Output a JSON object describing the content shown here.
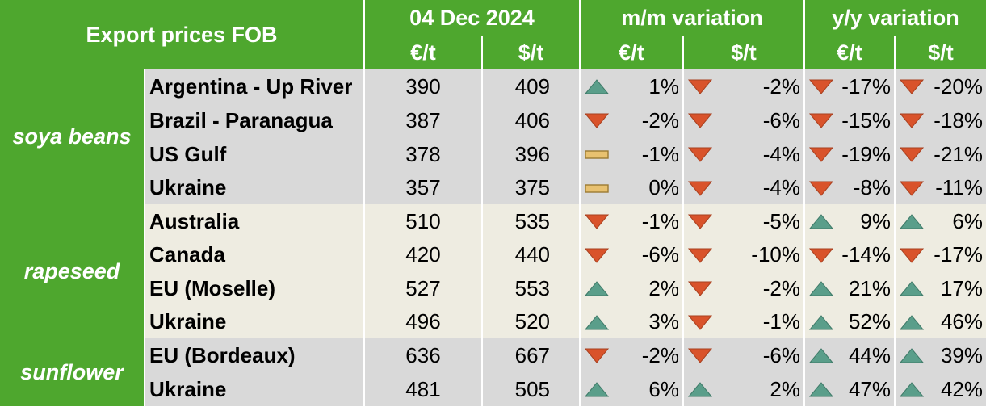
{
  "header": {
    "title": "Export prices FOB",
    "date": "04 Dec 2024",
    "mm_label": "m/m variation",
    "yy_label": "y/y variation",
    "unit_eur": "€/t",
    "unit_usd": "$/t"
  },
  "groups": [
    {
      "name": "soya beans",
      "color": "#4ea72e"
    },
    {
      "name": "rapeseed",
      "color": "#4ea72e"
    },
    {
      "name": "sunflower",
      "color": "#4ea72e"
    }
  ],
  "colors": {
    "header_green": "#4ea72e",
    "row_grey": "#d9d9d9",
    "row_cream": "#eeece1",
    "up_green": "#5a9e8a",
    "down_red": "#d9532b",
    "flat_tan": "#e8c170"
  },
  "rows": [
    {
      "origin": "Argentina - Up River",
      "eur": "390",
      "usd": "409",
      "mm_eur": "1%",
      "mm_eur_icon": "up",
      "mm_usd": "-2%",
      "mm_usd_icon": "down",
      "yy_eur": "-17%",
      "yy_eur_icon": "down",
      "yy_usd": "-20%",
      "yy_usd_icon": "down"
    },
    {
      "origin": "Brazil - Paranagua",
      "eur": "387",
      "usd": "406",
      "mm_eur": "-2%",
      "mm_eur_icon": "down",
      "mm_usd": "-6%",
      "mm_usd_icon": "down",
      "yy_eur": "-15%",
      "yy_eur_icon": "down",
      "yy_usd": "-18%",
      "yy_usd_icon": "down"
    },
    {
      "origin": "US Gulf",
      "eur": "378",
      "usd": "396",
      "mm_eur": "-1%",
      "mm_eur_icon": "flat",
      "mm_usd": "-4%",
      "mm_usd_icon": "down",
      "yy_eur": "-19%",
      "yy_eur_icon": "down",
      "yy_usd": "-21%",
      "yy_usd_icon": "down"
    },
    {
      "origin": "Ukraine",
      "eur": "357",
      "usd": "375",
      "mm_eur": "0%",
      "mm_eur_icon": "flat",
      "mm_usd": "-4%",
      "mm_usd_icon": "down",
      "yy_eur": "-8%",
      "yy_eur_icon": "down",
      "yy_usd": "-11%",
      "yy_usd_icon": "down"
    },
    {
      "origin": "Australia",
      "eur": "510",
      "usd": "535",
      "mm_eur": "-1%",
      "mm_eur_icon": "down",
      "mm_usd": "-5%",
      "mm_usd_icon": "down",
      "yy_eur": "9%",
      "yy_eur_icon": "up",
      "yy_usd": "6%",
      "yy_usd_icon": "up"
    },
    {
      "origin": "Canada",
      "eur": "420",
      "usd": "440",
      "mm_eur": "-6%",
      "mm_eur_icon": "down",
      "mm_usd": "-10%",
      "mm_usd_icon": "down",
      "yy_eur": "-14%",
      "yy_eur_icon": "down",
      "yy_usd": "-17%",
      "yy_usd_icon": "down"
    },
    {
      "origin": "EU (Moselle)",
      "eur": "527",
      "usd": "553",
      "mm_eur": "2%",
      "mm_eur_icon": "up",
      "mm_usd": "-2%",
      "mm_usd_icon": "down",
      "yy_eur": "21%",
      "yy_eur_icon": "up",
      "yy_usd": "17%",
      "yy_usd_icon": "up"
    },
    {
      "origin": "Ukraine",
      "eur": "496",
      "usd": "520",
      "mm_eur": "3%",
      "mm_eur_icon": "up",
      "mm_usd": "-1%",
      "mm_usd_icon": "down",
      "yy_eur": "52%",
      "yy_eur_icon": "up",
      "yy_usd": "46%",
      "yy_usd_icon": "up"
    },
    {
      "origin": "EU (Bordeaux)",
      "eur": "636",
      "usd": "667",
      "mm_eur": "-2%",
      "mm_eur_icon": "down",
      "mm_usd": "-6%",
      "mm_usd_icon": "down",
      "yy_eur": "44%",
      "yy_eur_icon": "up",
      "yy_usd": "39%",
      "yy_usd_icon": "up"
    },
    {
      "origin": "Ukraine",
      "eur": "481",
      "usd": "505",
      "mm_eur": "6%",
      "mm_eur_icon": "up",
      "mm_usd": "2%",
      "mm_usd_icon": "up",
      "yy_eur": "47%",
      "yy_eur_icon": "up",
      "yy_usd": "42%",
      "yy_usd_icon": "up"
    }
  ]
}
